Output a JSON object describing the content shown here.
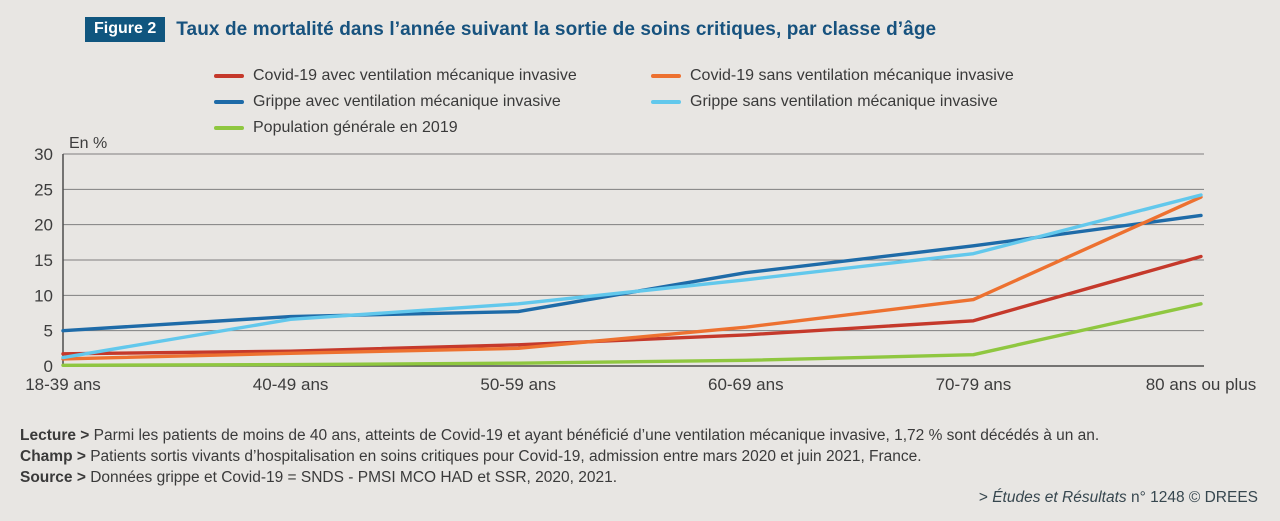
{
  "figure": {
    "badge_label": "Figure 2",
    "title": "Taux de mortalité dans l’année suivant la sortie de soins critiques, par classe d’âge"
  },
  "chart_data": {
    "type": "line",
    "title": "Taux de mortalité dans l’année suivant la sortie de soins critiques, par classe d’âge",
    "unit_label": "En %",
    "categories": [
      "18-39 ans",
      "40-49 ans",
      "50-59 ans",
      "60-69 ans",
      "70-79 ans",
      "80 ans ou plus"
    ],
    "series": [
      {
        "name": "Covid-19 avec ventilation mécanique invasive",
        "color": "#c5392b",
        "values": [
          1.72,
          2.1,
          3.0,
          4.4,
          6.4,
          15.5
        ]
      },
      {
        "name": "Covid-19 sans ventilation mécanique invasive",
        "color": "#ed7130",
        "values": [
          1.0,
          1.8,
          2.5,
          5.5,
          9.4,
          23.9
        ]
      },
      {
        "name": "Grippe avec ventilation mécanique invasive",
        "color": "#1e6ba8",
        "values": [
          5.0,
          7.0,
          7.7,
          13.2,
          17.0,
          21.3
        ]
      },
      {
        "name": "Grippe  sans ventilation mécanique invasive",
        "color": "#62c8ec",
        "values": [
          1.2,
          6.6,
          8.8,
          12.2,
          15.9,
          24.2
        ]
      },
      {
        "name": "Population générale en 2019",
        "color": "#8fc740",
        "values": [
          0.1,
          0.2,
          0.4,
          0.8,
          1.6,
          8.8
        ]
      }
    ],
    "draw_order": [
      0,
      2,
      4,
      1,
      3
    ],
    "ylim": [
      0,
      30
    ],
    "ytick_step": 5,
    "grid": true,
    "legend_position": "top"
  },
  "notes": [
    {
      "label": "Lecture >",
      "text": "Parmi les patients de moins de 40 ans, atteints  de Covid-19 et ayant bénéficié d’une ventilation mécanique invasive, 1,72 % sont décédés à un an."
    },
    {
      "label": "Champ >",
      "text": "Patients sortis vivants d’hospitalisation en soins critiques pour Covid-19, admission entre mars 2020 et juin 2021, France."
    },
    {
      "label": "Source >",
      "text": "Données grippe et Covid-19 = SNDS - PMSI MCO HAD et SSR, 2020, 2021."
    }
  ],
  "attribution": {
    "prefix": ">",
    "serial_italic": "Études et Résultats",
    "rest": "n° 1248 © DREES"
  },
  "colors": {
    "background": "#e8e6e3",
    "badge_background": "#10567f",
    "title_text": "#17527e",
    "grid_line": "#7f7f7f",
    "axis_line": "#4d4d4d",
    "axis_text": "#3d3d3d",
    "note_text": "#3a3a3a"
  }
}
